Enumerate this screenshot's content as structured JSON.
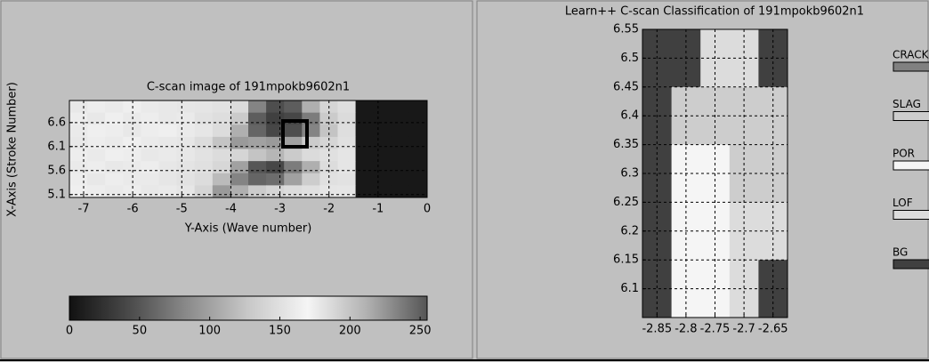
{
  "chart_data": [
    {
      "type": "heatmap",
      "title": "C-scan image of 191mpokb9602n1",
      "xlabel": "Y-Axis (Wave number)",
      "ylabel": "X-Axis (Stroke Number)",
      "xlim": [
        -7.29,
        0
      ],
      "ylim": [
        5.04,
        7.06
      ],
      "xticks": [
        -7,
        -6,
        -5,
        -4,
        -3,
        -2,
        -1,
        0
      ],
      "yticks": [
        5.1,
        5.6,
        6.1,
        6.6
      ],
      "grid": true,
      "colormap": [
        "#111111",
        "#4a4a4a",
        "#8c8c8c",
        "#c8c8c8",
        "#f5f5f5",
        "#b0b0b0",
        "#555555"
      ],
      "clim": [
        0,
        255
      ],
      "cticks": [
        0,
        50,
        100,
        150,
        200,
        250
      ],
      "z": [
        [
          158,
          162,
          160,
          164,
          160,
          158,
          156,
          155,
          152,
          145,
          80,
          45,
          55,
          110,
          140,
          148,
          5,
          5,
          5,
          5
        ],
        [
          162,
          158,
          164,
          160,
          162,
          158,
          160,
          152,
          148,
          130,
          55,
          35,
          40,
          75,
          130,
          145,
          5,
          5,
          5,
          5
        ],
        [
          160,
          164,
          162,
          158,
          162,
          164,
          160,
          156,
          146,
          110,
          60,
          40,
          45,
          80,
          125,
          148,
          5,
          5,
          5,
          5
        ],
        [
          158,
          162,
          160,
          164,
          160,
          158,
          156,
          146,
          125,
          95,
          100,
          95,
          100,
          130,
          140,
          150,
          5,
          5,
          5,
          5
        ],
        [
          162,
          160,
          164,
          162,
          158,
          160,
          157,
          152,
          146,
          140,
          125,
          115,
          130,
          145,
          150,
          155,
          5,
          5,
          5,
          5
        ],
        [
          160,
          162,
          158,
          160,
          162,
          157,
          154,
          150,
          142,
          100,
          50,
          40,
          75,
          110,
          146,
          155,
          5,
          5,
          5,
          5
        ],
        [
          162,
          158,
          162,
          160,
          160,
          156,
          152,
          146,
          118,
          80,
          60,
          65,
          100,
          132,
          150,
          152,
          5,
          5,
          5,
          5
        ],
        [
          164,
          162,
          160,
          162,
          158,
          160,
          156,
          140,
          95,
          110,
          130,
          140,
          146,
          150,
          155,
          156,
          5,
          5,
          5,
          5
        ]
      ]
    },
    {
      "type": "class-grid",
      "title": "Learn++ C-scan Classification of 191mpokb9602n1",
      "xlim": [
        -2.875,
        -2.625
      ],
      "ylim": [
        6.05,
        6.55
      ],
      "xticks": [
        -2.85,
        -2.8,
        -2.75,
        -2.7,
        -2.65
      ],
      "yticks": [
        6.1,
        6.15,
        6.2,
        6.25,
        6.3,
        6.35,
        6.4,
        6.45,
        6.5,
        6.55
      ],
      "grid": true,
      "classes": [
        {
          "name": "CRACK",
          "color": "#808080"
        },
        {
          "name": "SLAG",
          "color": "#cdcdcd"
        },
        {
          "name": "POR",
          "color": "#f5f5f5"
        },
        {
          "name": "LOF",
          "color": "#dcdcdc"
        },
        {
          "name": "BG",
          "color": "#404040"
        }
      ],
      "z": [
        [
          4,
          4,
          3,
          3,
          4
        ],
        [
          4,
          4,
          3,
          3,
          4
        ],
        [
          4,
          1,
          1,
          1,
          1
        ],
        [
          4,
          1,
          1,
          1,
          1
        ],
        [
          4,
          2,
          2,
          1,
          1
        ],
        [
          4,
          2,
          2,
          1,
          1
        ],
        [
          4,
          2,
          2,
          3,
          3
        ],
        [
          4,
          2,
          2,
          3,
          3
        ],
        [
          4,
          2,
          2,
          3,
          4
        ],
        [
          4,
          2,
          2,
          3,
          4
        ]
      ]
    }
  ]
}
